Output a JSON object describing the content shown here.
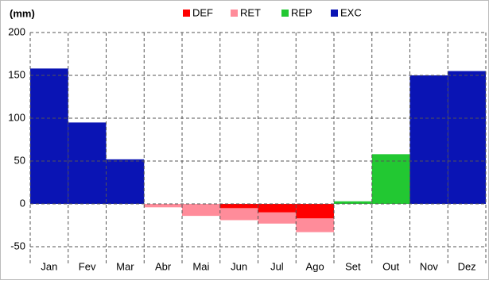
{
  "chart_data": {
    "type": "bar",
    "stacked": true,
    "y_label": "(mm)",
    "categories": [
      "Jan",
      "Fev",
      "Mar",
      "Abr",
      "Mai",
      "Jun",
      "Jul",
      "Ago",
      "Set",
      "Out",
      "Nov",
      "Dez"
    ],
    "series": [
      {
        "name": "DEF",
        "color": "#ff0000",
        "values": [
          null,
          null,
          null,
          null,
          null,
          -5,
          -10,
          -17,
          null,
          null,
          null,
          null
        ]
      },
      {
        "name": "RET",
        "color": "#ff8c9a",
        "values": [
          null,
          null,
          null,
          -4,
          -14,
          -14,
          -13,
          -16,
          null,
          null,
          null,
          null
        ]
      },
      {
        "name": "REP",
        "color": "#22c832",
        "values": [
          null,
          null,
          null,
          null,
          null,
          null,
          null,
          null,
          3,
          58,
          null,
          null
        ]
      },
      {
        "name": "EXC",
        "color": "#0a14b4",
        "values": [
          158,
          95,
          52,
          null,
          null,
          null,
          null,
          null,
          null,
          null,
          150,
          155
        ]
      }
    ],
    "ylim": [
      -50,
      200
    ],
    "yticks": [
      -50,
      0,
      50,
      100,
      150,
      200
    ],
    "grid": true
  }
}
